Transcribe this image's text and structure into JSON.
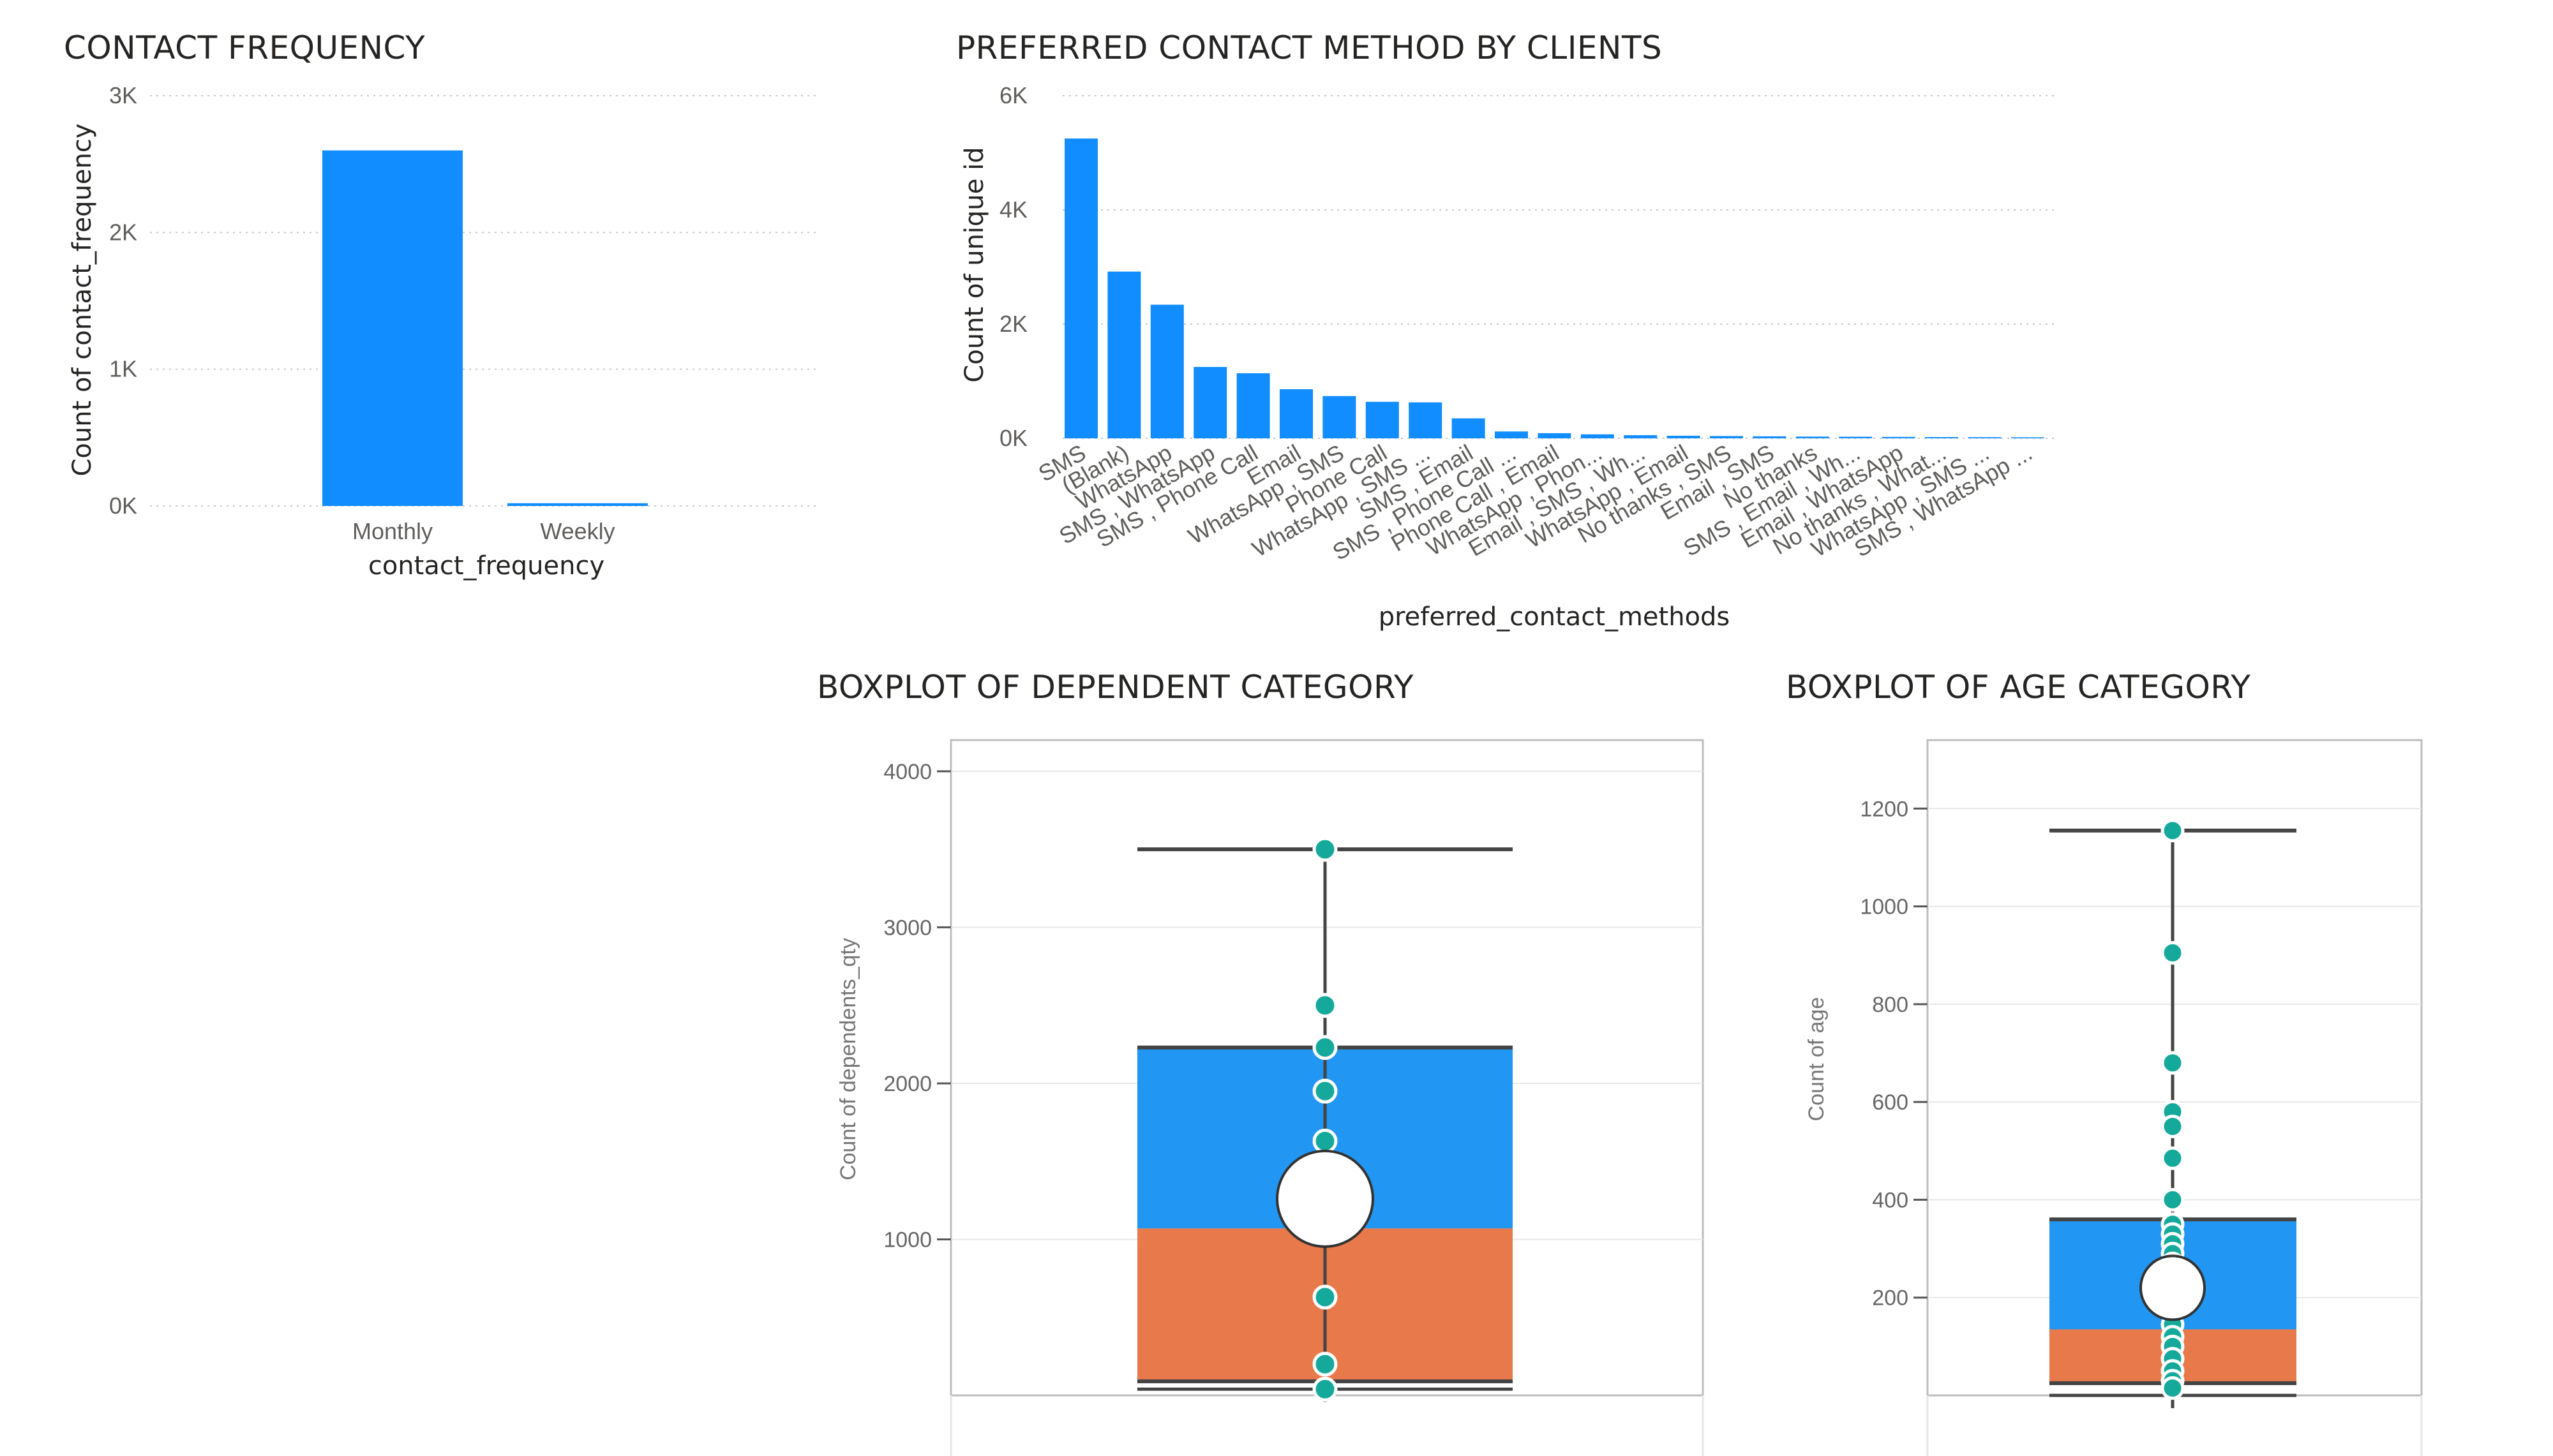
{
  "colors": {
    "bar": "#118dff",
    "box_upper": "#2196f3",
    "box_lower": "#e8794a",
    "point": "#14a99a",
    "title": "#252423",
    "grid": "#c8c8c8"
  },
  "chart_data": [
    {
      "type": "bar",
      "title": "CONTACT FREQUENCY",
      "xlabel": "contact_frequency",
      "ylabel": "Count of contact_frequency",
      "categories": [
        "Monthly",
        "Weekly"
      ],
      "values": [
        2600,
        20
      ],
      "ylim": [
        0,
        3000
      ],
      "yticks": [
        0,
        1000,
        2000,
        3000
      ],
      "ytick_labels": [
        "0K",
        "1K",
        "2K",
        "3K"
      ],
      "grid": true
    },
    {
      "type": "bar",
      "title": "PREFERRED CONTACT METHOD BY CLIENTS",
      "xlabel": "preferred_contact_methods",
      "ylabel": "Count of unique id",
      "categories": [
        "SMS",
        "(Blank)",
        "WhatsApp",
        "SMS , WhatsApp",
        "SMS , Phone Call",
        "Email",
        "WhatsApp , SMS",
        "Phone Call",
        "WhatsApp , SMS ...",
        "SMS , Email",
        "SMS , Phone Call ...",
        "Phone Call , Email",
        "WhatsApp , Phon...",
        "Email , SMS , Wh...",
        "WhatsApp , Email",
        "No thanks , SMS",
        "Email , SMS",
        "No thanks",
        "SMS , Email , Wh...",
        "Email , WhatsApp",
        "No thanks , What...",
        "WhatsApp , SMS ...",
        "SMS , WhatsApp ..."
      ],
      "values": [
        5250,
        2920,
        2340,
        1250,
        1140,
        860,
        740,
        640,
        630,
        350,
        120,
        90,
        70,
        55,
        45,
        40,
        35,
        30,
        28,
        25,
        22,
        20,
        18
      ],
      "ylim": [
        0,
        6000
      ],
      "yticks": [
        0,
        2000,
        4000,
        6000
      ],
      "ytick_labels": [
        "0K",
        "2K",
        "4K",
        "6K"
      ],
      "grid": true
    },
    {
      "type": "box",
      "title": "BOXPLOT OF DEPENDENT CATEGORY",
      "ylabel": "Count of dependents_qty",
      "ylim": [
        0,
        4200
      ],
      "yticks": [
        1000,
        2000,
        3000,
        4000
      ],
      "ytick_labels": [
        "1000",
        "2000",
        "3000",
        "4000"
      ],
      "whisker_low": 40,
      "q1": 90,
      "median": 1070,
      "q3": 2230,
      "whisker_high": 3500,
      "mean": 1260,
      "points": [
        3500,
        2500,
        2230,
        1950,
        1630,
        630,
        200,
        40
      ]
    },
    {
      "type": "box",
      "title": "BOXPLOT OF AGE CATEGORY",
      "ylabel": "Count of age",
      "ylim": [
        0,
        1340
      ],
      "yticks": [
        200,
        400,
        600,
        800,
        1000,
        1200
      ],
      "ytick_labels": [
        "200",
        "400",
        "600",
        "800",
        "1000",
        "1200"
      ],
      "whisker_low": 0,
      "q1": 25,
      "median": 135,
      "q3": 360,
      "whisker_high": 1155,
      "mean": 220,
      "points": [
        1155,
        905,
        680,
        580,
        550,
        485,
        400,
        350,
        330,
        310,
        290,
        270,
        245,
        220,
        195,
        170,
        145,
        120,
        100,
        75,
        50,
        30,
        15
      ]
    }
  ]
}
